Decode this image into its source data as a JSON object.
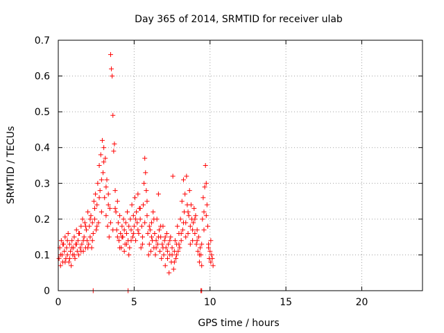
{
  "chart_data": {
    "type": "scatter",
    "title": "Day 365 of 2014, SRMTID for receiver ulab",
    "xlabel": "GPS time / hours",
    "ylabel": "SRMTID / TECUs",
    "xlim": [
      0,
      24
    ],
    "ylim": [
      0,
      0.7
    ],
    "xticks": [
      0,
      5,
      10,
      15,
      20
    ],
    "xtick_labels": [
      "0",
      "5",
      "10",
      "15",
      "20"
    ],
    "yticks": [
      0,
      0.1,
      0.2,
      0.3,
      0.4,
      0.5,
      0.6,
      0.7
    ],
    "ytick_labels": [
      "0",
      "0.1",
      "0.2",
      "0.3",
      "0.4",
      "0.5",
      "0.6",
      "0.7"
    ],
    "grid": true,
    "marker": "plus",
    "series": [
      {
        "name": "SRMTID",
        "color": "#ff0000",
        "points": [
          [
            0.05,
            0.09
          ],
          [
            0.1,
            0.12
          ],
          [
            0.15,
            0.07
          ],
          [
            0.2,
            0.14
          ],
          [
            0.25,
            0.1
          ],
          [
            0.3,
            0.08
          ],
          [
            0.35,
            0.13
          ],
          [
            0.4,
            0.11
          ],
          [
            0.45,
            0.15
          ],
          [
            0.5,
            0.09
          ],
          [
            0.55,
            0.12
          ],
          [
            0.6,
            0.1
          ],
          [
            0.65,
            0.16
          ],
          [
            0.7,
            0.08
          ],
          [
            0.75,
            0.13
          ],
          [
            0.8,
            0.11
          ],
          [
            0.85,
            0.07
          ],
          [
            0.9,
            0.14
          ],
          [
            0.95,
            0.1
          ],
          [
            1.0,
            0.12
          ],
          [
            1.05,
            0.15
          ],
          [
            1.1,
            0.09
          ],
          [
            1.15,
            0.13
          ],
          [
            1.2,
            0.17
          ],
          [
            1.25,
            0.11
          ],
          [
            1.3,
            0.14
          ],
          [
            1.35,
            0.1
          ],
          [
            1.4,
            0.16
          ],
          [
            1.45,
            0.12
          ],
          [
            1.5,
            0.18
          ],
          [
            1.55,
            0.13
          ],
          [
            1.6,
            0.2
          ],
          [
            1.65,
            0.11
          ],
          [
            1.7,
            0.15
          ],
          [
            1.75,
            0.19
          ],
          [
            1.8,
            0.12
          ],
          [
            1.85,
            0.17
          ],
          [
            1.9,
            0.14
          ],
          [
            1.95,
            0.22
          ],
          [
            2.0,
            0.13
          ],
          [
            2.05,
            0.18
          ],
          [
            2.1,
            0.15
          ],
          [
            2.15,
            0.21
          ],
          [
            2.2,
            0.12
          ],
          [
            2.25,
            0.19
          ],
          [
            2.3,
            0.16
          ],
          [
            2.35,
            0.25
          ],
          [
            2.4,
            0.2
          ],
          [
            2.45,
            0.27
          ],
          [
            2.5,
            0.17
          ],
          [
            2.55,
            0.24
          ],
          [
            2.6,
            0.3
          ],
          [
            2.65,
            0.19
          ],
          [
            2.7,
            0.35
          ],
          [
            2.75,
            0.28
          ],
          [
            2.8,
            0.38
          ],
          [
            2.85,
            0.22
          ],
          [
            2.9,
            0.42
          ],
          [
            2.95,
            0.33
          ],
          [
            3.0,
            0.4
          ],
          [
            3.05,
            0.26
          ],
          [
            3.1,
            0.37
          ],
          [
            3.15,
            0.21
          ],
          [
            3.2,
            0.31
          ],
          [
            3.25,
            0.18
          ],
          [
            3.3,
            0.27
          ],
          [
            3.35,
            0.15
          ],
          [
            3.4,
            0.23
          ],
          [
            3.45,
            0.66
          ],
          [
            3.5,
            0.62
          ],
          [
            3.55,
            0.6
          ],
          [
            3.6,
            0.49
          ],
          [
            3.65,
            0.39
          ],
          [
            3.7,
            0.41
          ],
          [
            3.75,
            0.28
          ],
          [
            3.8,
            0.22
          ],
          [
            3.85,
            0.17
          ],
          [
            3.9,
            0.25
          ],
          [
            3.95,
            0.19
          ],
          [
            4.0,
            0.14
          ],
          [
            4.05,
            0.21
          ],
          [
            4.1,
            0.16
          ],
          [
            4.15,
            0.12
          ],
          [
            4.2,
            0.18
          ],
          [
            4.25,
            0.15
          ],
          [
            4.3,
            0.2
          ],
          [
            4.35,
            0.17
          ],
          [
            4.4,
            0.13
          ],
          [
            4.45,
            0.19
          ],
          [
            4.5,
            0.16
          ],
          [
            4.55,
            0.22
          ],
          [
            4.6,
            0.14
          ],
          [
            4.65,
            0.18
          ],
          [
            4.7,
            0.12
          ],
          [
            4.75,
            0.2
          ],
          [
            4.8,
            0.17
          ],
          [
            4.85,
            0.24
          ],
          [
            4.9,
            0.15
          ],
          [
            4.95,
            0.21
          ],
          [
            5.0,
            0.18
          ],
          [
            5.05,
            0.26
          ],
          [
            5.1,
            0.14
          ],
          [
            5.15,
            0.22
          ],
          [
            5.2,
            0.19
          ],
          [
            5.25,
            0.27
          ],
          [
            5.3,
            0.16
          ],
          [
            5.35,
            0.23
          ],
          [
            5.4,
            0.2
          ],
          [
            5.45,
            0.12
          ],
          [
            5.5,
            0.18
          ],
          [
            5.55,
            0.15
          ],
          [
            5.6,
            0.24
          ],
          [
            5.65,
            0.3
          ],
          [
            5.7,
            0.37
          ],
          [
            5.75,
            0.33
          ],
          [
            5.8,
            0.28
          ],
          [
            5.85,
            0.21
          ],
          [
            5.9,
            0.16
          ],
          [
            5.95,
            0.1
          ],
          [
            6.0,
            0.13
          ],
          [
            6.05,
            0.17
          ],
          [
            6.1,
            0.11
          ],
          [
            6.15,
            0.19
          ],
          [
            6.2,
            0.14
          ],
          [
            6.25,
            0.22
          ],
          [
            6.3,
            0.12
          ],
          [
            6.35,
            0.16
          ],
          [
            6.4,
            0.1
          ],
          [
            6.45,
            0.14
          ],
          [
            6.5,
            0.2
          ],
          [
            6.55,
            0.13
          ],
          [
            6.6,
            0.27
          ],
          [
            6.65,
            0.17
          ],
          [
            6.7,
            0.11
          ],
          [
            6.75,
            0.15
          ],
          [
            6.8,
            0.09
          ],
          [
            6.85,
            0.13
          ],
          [
            6.9,
            0.18
          ],
          [
            6.95,
            0.1
          ],
          [
            7.0,
            0.14
          ],
          [
            7.05,
            0.07
          ],
          [
            7.1,
            0.12
          ],
          [
            7.15,
            0.16
          ],
          [
            7.2,
            0.09
          ],
          [
            7.25,
            0.13
          ],
          [
            7.3,
            0.05
          ],
          [
            7.35,
            0.1
          ],
          [
            7.4,
            0.15
          ],
          [
            7.45,
            0.08
          ],
          [
            7.5,
            0.12
          ],
          [
            7.55,
            0.32
          ],
          [
            7.6,
            0.06
          ],
          [
            7.65,
            0.11
          ],
          [
            7.7,
            0.14
          ],
          [
            7.75,
            0.09
          ],
          [
            7.8,
            0.13
          ],
          [
            7.85,
            0.18
          ],
          [
            7.9,
            0.11
          ],
          [
            7.95,
            0.16
          ],
          [
            8.0,
            0.12
          ],
          [
            8.05,
            0.2
          ],
          [
            8.1,
            0.14
          ],
          [
            8.15,
            0.25
          ],
          [
            8.2,
            0.17
          ],
          [
            8.25,
            0.31
          ],
          [
            8.3,
            0.22
          ],
          [
            8.35,
            0.27
          ],
          [
            8.4,
            0.19
          ],
          [
            8.45,
            0.32
          ],
          [
            8.5,
            0.24
          ],
          [
            8.55,
            0.16
          ],
          [
            8.6,
            0.21
          ],
          [
            8.65,
            0.28
          ],
          [
            8.7,
            0.18
          ],
          [
            8.75,
            0.24
          ],
          [
            8.8,
            0.2
          ],
          [
            8.85,
            0.14
          ],
          [
            8.9,
            0.19
          ],
          [
            8.95,
            0.23
          ],
          [
            9.0,
            0.16
          ],
          [
            9.05,
            0.21
          ],
          [
            9.1,
            0.13
          ],
          [
            9.15,
            0.17
          ],
          [
            9.2,
            0.11
          ],
          [
            9.25,
            0.15
          ],
          [
            9.3,
            0.08
          ],
          [
            9.35,
            0.12
          ],
          [
            9.4,
            0.1
          ],
          [
            9.45,
            0.07
          ],
          [
            9.5,
            0.2
          ],
          [
            9.55,
            0.26
          ],
          [
            9.6,
            0.22
          ],
          [
            9.65,
            0.29
          ],
          [
            9.7,
            0.35
          ],
          [
            9.75,
            0.3
          ],
          [
            9.8,
            0.24
          ],
          [
            9.85,
            0.18
          ],
          [
            9.9,
            0.13
          ],
          [
            9.95,
            0.09
          ],
          [
            10.0,
            0.11
          ],
          [
            10.05,
            0.08
          ],
          [
            10.1,
            0.1
          ],
          [
            10.15,
            0.09
          ],
          [
            10.2,
            0.07
          ],
          [
            0.15,
            0.1
          ],
          [
            0.3,
            0.13
          ],
          [
            0.45,
            0.08
          ],
          [
            0.6,
            0.14
          ],
          [
            0.75,
            0.09
          ],
          [
            0.9,
            0.12
          ],
          [
            1.05,
            0.1
          ],
          [
            1.2,
            0.13
          ],
          [
            1.35,
            0.16
          ],
          [
            1.5,
            0.11
          ],
          [
            1.65,
            0.14
          ],
          [
            1.8,
            0.18
          ],
          [
            1.95,
            0.12
          ],
          [
            2.1,
            0.2
          ],
          [
            2.25,
            0.14
          ],
          [
            2.4,
            0.23
          ],
          [
            2.55,
            0.18
          ],
          [
            2.7,
            0.26
          ],
          [
            2.85,
            0.31
          ],
          [
            3.0,
            0.36
          ],
          [
            3.15,
            0.29
          ],
          [
            3.3,
            0.24
          ],
          [
            3.45,
            0.19
          ],
          [
            3.6,
            0.17
          ],
          [
            3.75,
            0.23
          ],
          [
            3.9,
            0.15
          ],
          [
            4.05,
            0.12
          ],
          [
            4.2,
            0.15
          ],
          [
            4.35,
            0.11
          ],
          [
            4.5,
            0.13
          ],
          [
            4.65,
            0.1
          ],
          [
            4.8,
            0.14
          ],
          [
            4.95,
            0.16
          ],
          [
            5.1,
            0.2
          ],
          [
            5.25,
            0.17
          ],
          [
            5.4,
            0.23
          ],
          [
            5.55,
            0.13
          ],
          [
            5.7,
            0.19
          ],
          [
            5.85,
            0.25
          ],
          [
            6.0,
            0.18
          ],
          [
            6.15,
            0.15
          ],
          [
            6.3,
            0.2
          ],
          [
            6.45,
            0.12
          ],
          [
            6.6,
            0.15
          ],
          [
            6.75,
            0.18
          ],
          [
            6.9,
            0.12
          ],
          [
            7.05,
            0.15
          ],
          [
            7.2,
            0.11
          ],
          [
            7.35,
            0.14
          ],
          [
            7.5,
            0.1
          ],
          [
            7.65,
            0.08
          ],
          [
            7.8,
            0.1
          ],
          [
            7.95,
            0.13
          ],
          [
            8.1,
            0.16
          ],
          [
            8.25,
            0.19
          ],
          [
            8.4,
            0.15
          ],
          [
            8.55,
            0.22
          ],
          [
            8.7,
            0.13
          ],
          [
            8.85,
            0.17
          ],
          [
            9.0,
            0.2
          ],
          [
            9.15,
            0.14
          ],
          [
            9.3,
            0.1
          ],
          [
            9.45,
            0.13
          ],
          [
            9.6,
            0.17
          ],
          [
            9.75,
            0.21
          ],
          [
            9.9,
            0.12
          ],
          [
            10.05,
            0.14
          ],
          [
            2.3,
            0.0
          ],
          [
            4.6,
            0.0
          ],
          [
            9.4,
            0.0
          ],
          [
            9.45,
            0.0
          ]
        ]
      }
    ]
  }
}
